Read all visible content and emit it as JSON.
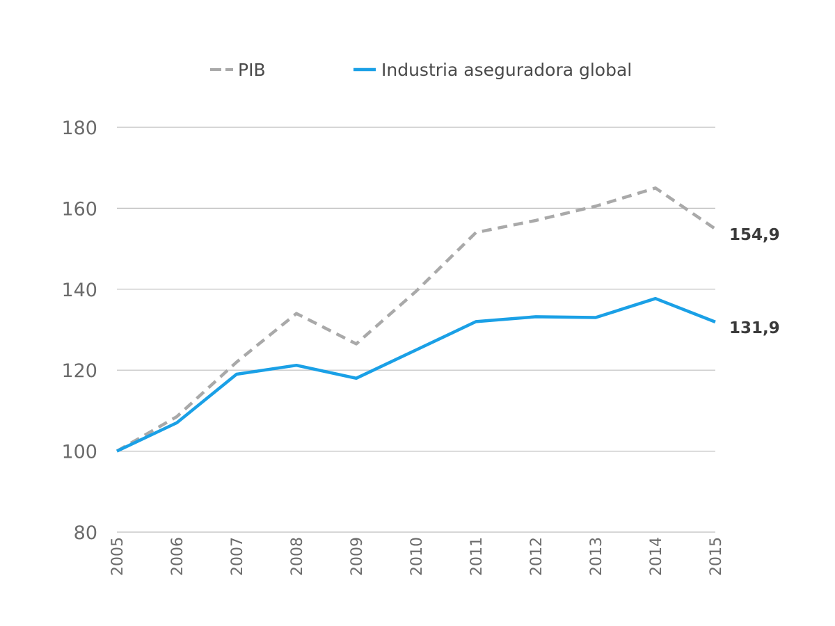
{
  "chart_data": {
    "type": "line",
    "title": "",
    "xlabel": "",
    "ylabel": "",
    "x": [
      "2005",
      "2006",
      "2007",
      "2008",
      "2009",
      "2010",
      "2011",
      "2012",
      "2013",
      "2014",
      "2015"
    ],
    "ylim": [
      80,
      180
    ],
    "yticks": [
      "80",
      "100",
      "120",
      "140",
      "160",
      "180"
    ],
    "grid": true,
    "legend_position": "top",
    "series": [
      {
        "name": "PIB",
        "style": "dashed",
        "color": "#a9a9a9",
        "values": [
          100,
          108.5,
          122,
          134,
          126.5,
          139.5,
          154,
          157,
          160.5,
          165,
          154.9
        ],
        "end_label": "154,9"
      },
      {
        "name": "Industria aseguradora global",
        "style": "solid",
        "color": "#1aa0e6",
        "values": [
          100,
          107,
          119,
          121.2,
          118,
          125,
          132,
          133.2,
          133,
          137.7,
          131.9
        ],
        "end_label": "131,9"
      }
    ]
  }
}
